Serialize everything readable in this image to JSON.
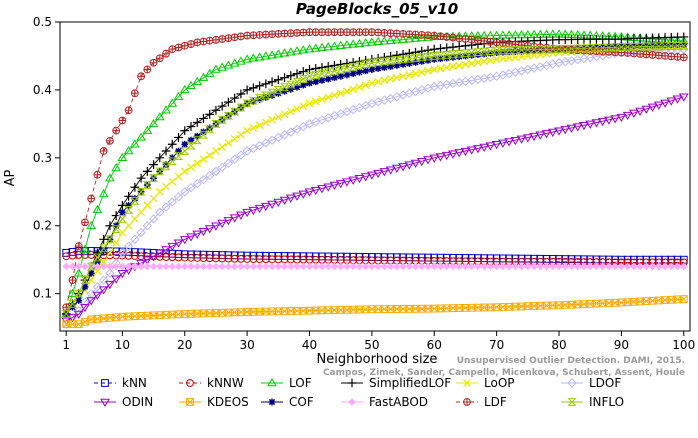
{
  "chart_data": {
    "type": "line",
    "title": "PageBlocks_05_v10",
    "xlabel": "Neighborhood size",
    "ylabel": "AP",
    "xlim": [
      0,
      101
    ],
    "ylim": [
      0.045,
      0.5
    ],
    "xticks": [
      1,
      10,
      20,
      30,
      40,
      50,
      60,
      70,
      80,
      90,
      100
    ],
    "xtick_labels": [
      "1",
      "10",
      "20",
      "30",
      "40",
      "50",
      "60",
      "70",
      "80",
      "90",
      "100"
    ],
    "yticks": [
      0.1,
      0.2,
      0.3,
      0.4,
      0.5
    ],
    "ytick_labels": [
      "0.1",
      "0.2",
      "0.3",
      "0.4",
      "0.5"
    ],
    "grid": false,
    "legend_position": "bottom",
    "watermark_lines": [
      "Unsupervised Outlier Detection. DAMI, 2015.",
      "Campos, Zimek, Sander, Campello, Micenkova, Schubert, Assent, Houle"
    ],
    "series": [
      {
        "name": "kNN",
        "color": "#0000cc",
        "marker": "square",
        "dashed": true,
        "x": [
          1,
          3,
          5,
          10,
          20,
          30,
          40,
          50,
          60,
          70,
          80,
          90,
          100
        ],
        "values": [
          0.16,
          0.163,
          0.163,
          0.162,
          0.158,
          0.156,
          0.155,
          0.154,
          0.153,
          0.152,
          0.151,
          0.15,
          0.15
        ]
      },
      {
        "name": "kNNW",
        "color": "#cc0000",
        "marker": "circle",
        "dashed": true,
        "x": [
          1,
          3,
          5,
          10,
          20,
          30,
          40,
          50,
          60,
          70,
          80,
          90,
          100
        ],
        "values": [
          0.155,
          0.157,
          0.157,
          0.156,
          0.153,
          0.151,
          0.15,
          0.149,
          0.148,
          0.147,
          0.147,
          0.146,
          0.146
        ]
      },
      {
        "name": "LOF",
        "color": "#00cc00",
        "marker": "triangle-up",
        "dashed": false,
        "x": [
          1,
          3,
          5,
          8,
          10,
          13,
          16,
          20,
          25,
          30,
          40,
          50,
          60,
          70,
          80,
          90,
          100
        ],
        "values": [
          0.07,
          0.13,
          0.2,
          0.27,
          0.3,
          0.33,
          0.36,
          0.4,
          0.43,
          0.445,
          0.46,
          0.47,
          0.478,
          0.48,
          0.482,
          0.478,
          0.472
        ]
      },
      {
        "name": "SimplifiedLOF",
        "color": "#000000",
        "marker": "plus",
        "dashed": false,
        "x": [
          1,
          3,
          5,
          8,
          10,
          13,
          16,
          20,
          25,
          30,
          40,
          50,
          60,
          70,
          80,
          90,
          100
        ],
        "values": [
          0.07,
          0.1,
          0.14,
          0.2,
          0.23,
          0.27,
          0.3,
          0.34,
          0.37,
          0.4,
          0.43,
          0.445,
          0.46,
          0.47,
          0.474,
          0.475,
          0.478
        ]
      },
      {
        "name": "LoOP",
        "color": "#e8e800",
        "marker": "x",
        "dashed": false,
        "x": [
          1,
          3,
          5,
          8,
          10,
          13,
          16,
          20,
          25,
          30,
          40,
          50,
          60,
          70,
          80,
          90,
          100
        ],
        "values": [
          0.07,
          0.09,
          0.12,
          0.16,
          0.19,
          0.22,
          0.25,
          0.28,
          0.31,
          0.34,
          0.38,
          0.41,
          0.43,
          0.445,
          0.455,
          0.46,
          0.462
        ]
      },
      {
        "name": "LDOF",
        "color": "#b8b8ff",
        "marker": "diamond",
        "dashed": false,
        "x": [
          1,
          3,
          5,
          8,
          10,
          13,
          16,
          20,
          25,
          30,
          40,
          50,
          60,
          70,
          80,
          90,
          100
        ],
        "values": [
          0.055,
          0.075,
          0.1,
          0.13,
          0.16,
          0.19,
          0.22,
          0.25,
          0.28,
          0.31,
          0.35,
          0.38,
          0.405,
          0.42,
          0.44,
          0.455,
          0.46
        ]
      },
      {
        "name": "ODIN",
        "color": "#9900cc",
        "marker": "triangle-down",
        "dashed": false,
        "x": [
          1,
          3,
          5,
          10,
          20,
          30,
          40,
          50,
          60,
          70,
          80,
          90,
          100
        ],
        "values": [
          0.06,
          0.07,
          0.09,
          0.13,
          0.18,
          0.22,
          0.25,
          0.275,
          0.3,
          0.32,
          0.34,
          0.36,
          0.39
        ]
      },
      {
        "name": "KDEOS",
        "color": "#ffaa00",
        "marker": "square-x",
        "dashed": false,
        "x": [
          1,
          3,
          5,
          10,
          20,
          30,
          40,
          50,
          60,
          70,
          80,
          90,
          100
        ],
        "values": [
          0.055,
          0.055,
          0.062,
          0.066,
          0.07,
          0.073,
          0.075,
          0.077,
          0.078,
          0.08,
          0.083,
          0.087,
          0.092
        ]
      },
      {
        "name": "COF",
        "color": "#000080",
        "marker": "asterisk",
        "dashed": false,
        "x": [
          1,
          3,
          5,
          8,
          10,
          13,
          16,
          20,
          25,
          30,
          40,
          50,
          60,
          70,
          80,
          90,
          100
        ],
        "values": [
          0.07,
          0.09,
          0.13,
          0.18,
          0.22,
          0.25,
          0.28,
          0.32,
          0.35,
          0.38,
          0.41,
          0.43,
          0.445,
          0.455,
          0.46,
          0.465,
          0.467
        ]
      },
      {
        "name": "FastABOD",
        "color": "#ffaaff",
        "marker": "diamond-filled",
        "dashed": false,
        "x": [
          1,
          3,
          5,
          10,
          20,
          30,
          40,
          50,
          60,
          70,
          80,
          90,
          100
        ],
        "values": [
          0.14,
          0.14,
          0.14,
          0.14,
          0.14,
          0.14,
          0.14,
          0.14,
          0.14,
          0.14,
          0.14,
          0.14,
          0.14
        ]
      },
      {
        "name": "LDF",
        "color": "#b22222",
        "marker": "circle-plus",
        "dashed": true,
        "x": [
          1,
          2,
          3,
          5,
          7,
          9,
          11,
          13,
          15,
          18,
          22,
          26,
          30,
          40,
          50,
          60,
          70,
          80,
          90,
          100
        ],
        "values": [
          0.08,
          0.12,
          0.17,
          0.24,
          0.31,
          0.34,
          0.37,
          0.42,
          0.44,
          0.46,
          0.47,
          0.475,
          0.48,
          0.485,
          0.485,
          0.48,
          0.47,
          0.46,
          0.455,
          0.448
        ]
      },
      {
        "name": "INFLO",
        "color": "#99cc00",
        "marker": "hourglass",
        "dashed": false,
        "x": [
          1,
          3,
          5,
          8,
          10,
          13,
          16,
          20,
          25,
          30,
          40,
          50,
          60,
          70,
          80,
          90,
          100
        ],
        "values": [
          0.07,
          0.1,
          0.14,
          0.18,
          0.21,
          0.25,
          0.28,
          0.31,
          0.35,
          0.38,
          0.42,
          0.44,
          0.45,
          0.458,
          0.46,
          0.463,
          0.465
        ]
      }
    ]
  }
}
